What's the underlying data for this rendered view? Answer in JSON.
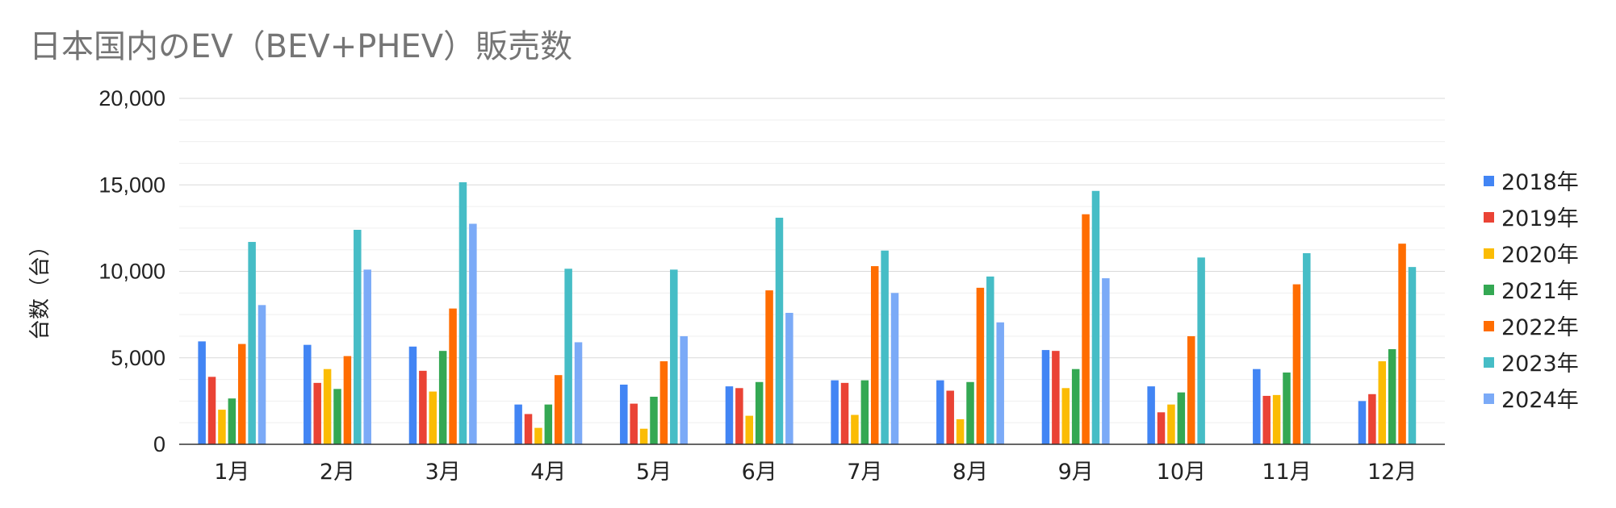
{
  "chart_data": {
    "type": "bar",
    "title": "日本国内のEV（BEV+PHEV）販売数",
    "ylabel": "台数（台）",
    "xlabel": "",
    "ylim": [
      0,
      20000
    ],
    "yticks": [
      0,
      5000,
      10000,
      15000,
      20000
    ],
    "ytick_labels": [
      "0",
      "5,000",
      "10,000",
      "15,000",
      "20,000"
    ],
    "grid": true,
    "legend_position": "right",
    "categories": [
      "1月",
      "2月",
      "3月",
      "4月",
      "5月",
      "6月",
      "7月",
      "8月",
      "9月",
      "10月",
      "11月",
      "12月"
    ],
    "series": [
      {
        "name": "2018年",
        "color": "#4285f4",
        "values": [
          5950,
          5750,
          5650,
          2300,
          3450,
          3350,
          3700,
          3700,
          5450,
          3350,
          4350,
          2500
        ]
      },
      {
        "name": "2019年",
        "color": "#ea4335",
        "values": [
          3900,
          3550,
          4250,
          1750,
          2350,
          3250,
          3550,
          3100,
          5400,
          1850,
          2800,
          2900
        ]
      },
      {
        "name": "2020年",
        "color": "#fbbc04",
        "values": [
          2000,
          4350,
          3050,
          950,
          900,
          1650,
          1700,
          1450,
          3250,
          2300,
          2850,
          4800
        ]
      },
      {
        "name": "2021年",
        "color": "#34a853",
        "values": [
          2650,
          3200,
          5400,
          2300,
          2750,
          3600,
          3700,
          3600,
          4350,
          3000,
          4150,
          5500
        ]
      },
      {
        "name": "2022年",
        "color": "#ff6d01",
        "values": [
          5800,
          5100,
          7850,
          4000,
          4800,
          8900,
          10300,
          9050,
          13300,
          6250,
          9250,
          11600
        ]
      },
      {
        "name": "2023年",
        "color": "#46bdc6",
        "values": [
          11700,
          12400,
          15150,
          10150,
          10100,
          13100,
          11200,
          9700,
          14650,
          10800,
          11050,
          10250
        ]
      },
      {
        "name": "2024年",
        "color": "#7baaf7",
        "values": [
          8050,
          10100,
          12750,
          5900,
          6250,
          7600,
          8750,
          7050,
          9600,
          null,
          null,
          null
        ]
      }
    ]
  }
}
